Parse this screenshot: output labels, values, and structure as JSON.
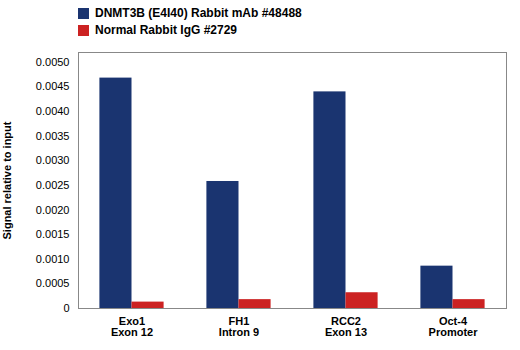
{
  "chart_data": {
    "type": "bar",
    "categories": [
      "Exo1\nExon 12",
      "FH1\nIntron 9",
      "RCC2\nExon 13",
      "Oct-4\nPromoter"
    ],
    "series": [
      {
        "name": "DNMT3B (E4I40) Rabbit mAb #48488",
        "color": "#1a3470",
        "values": [
          0.00468,
          0.00258,
          0.0044,
          0.00086
        ]
      },
      {
        "name": "Normal Rabbit IgG #2729",
        "color": "#cc2222",
        "values": [
          0.00013,
          0.00018,
          0.00032,
          0.00018
        ]
      }
    ],
    "ylabel": "Signal relative to input",
    "ylim": [
      0,
      0.0052
    ],
    "yticks": [
      0,
      0.0005,
      {
        "value": 0.001,
        "label": "0.0010"
      },
      0.0015,
      {
        "value": 0.002,
        "label": "0.0020"
      },
      0.0025,
      {
        "value": 0.003,
        "label": "0.0030"
      },
      0.0035,
      {
        "value": 0.004,
        "label": "0.0040"
      },
      0.0045,
      {
        "value": 0.005,
        "label": "0.0050"
      }
    ],
    "grid": false,
    "legend": "upper left"
  }
}
